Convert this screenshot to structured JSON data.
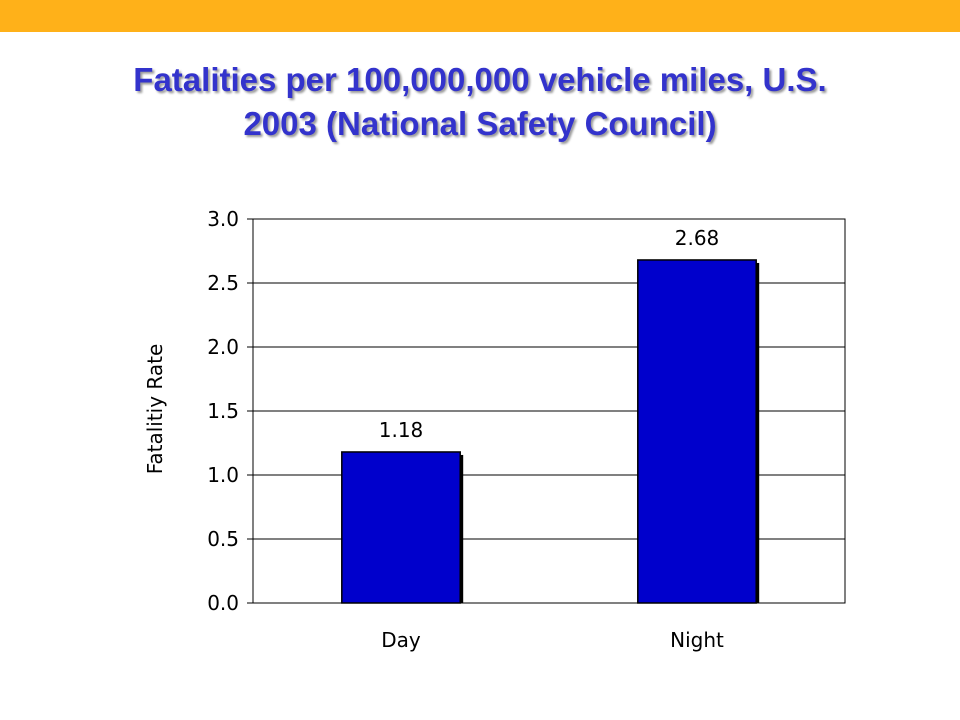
{
  "slide": {
    "title_line1": "Fatalities per 100,000,000 vehicle miles, U.S.",
    "title_line2": "2003 (National Safety Council)",
    "title_color": "#3333cc",
    "top_bar_color": "#ffb119"
  },
  "chart_data": {
    "type": "bar",
    "categories": [
      "Day",
      "Night"
    ],
    "values": [
      1.18,
      2.68
    ],
    "data_labels": [
      "1.18",
      "2.68"
    ],
    "title": "Fatalities per 100,000,000 vehicle miles, U.S. 2003 (National Safety Council)",
    "xlabel": "",
    "ylabel": "Fatalitiy Rate",
    "ylim": [
      0,
      3.0
    ],
    "yticks": [
      0.0,
      0.5,
      1.0,
      1.5,
      2.0,
      2.5,
      3.0
    ],
    "ytick_labels": [
      "0.0",
      "0.5",
      "1.0",
      "1.5",
      "2.0",
      "2.5",
      "3.0"
    ],
    "grid": true,
    "bar_color": "#0000cc",
    "legend": "none"
  }
}
